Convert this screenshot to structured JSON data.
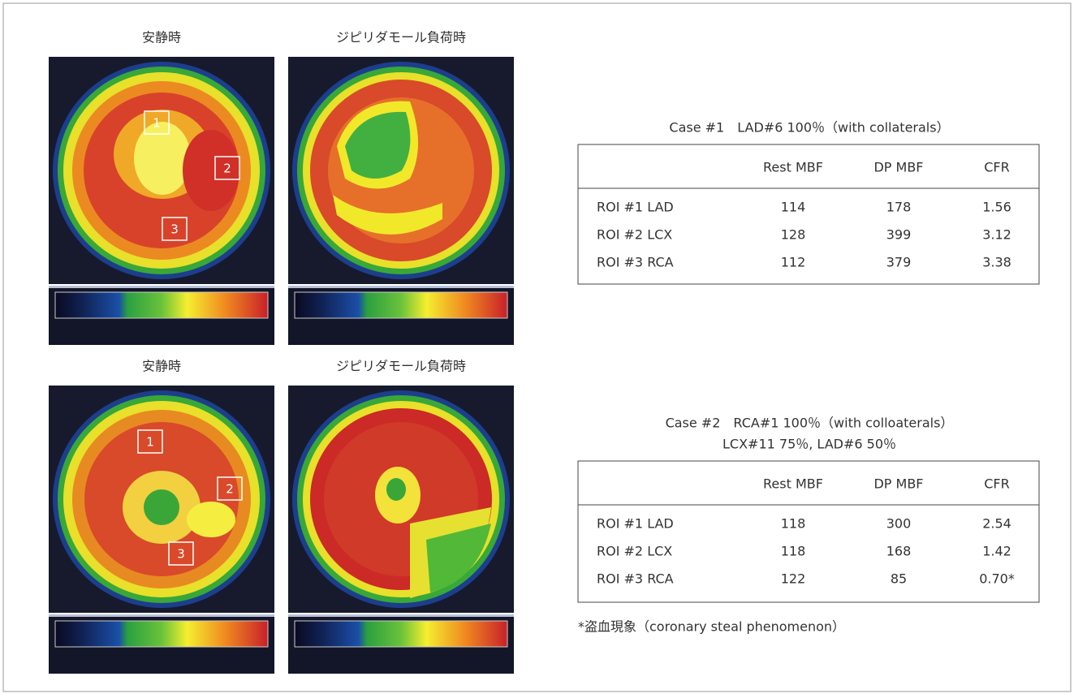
{
  "cases": [
    {
      "image_labels": [
        "安静時",
        "ジピリダモール負荷時"
      ],
      "roi_labels": [
        "1",
        "2",
        "3"
      ],
      "caption": [
        "Case #1　LAD#6 100％（with collaterals）"
      ],
      "table": {
        "header": [
          "Rest MBF",
          "DP MBF",
          "CFR"
        ],
        "rows": [
          [
            "ROI #1 LAD",
            114,
            178,
            1.56
          ],
          [
            "ROI #2 LCX",
            128,
            399,
            3.12
          ],
          [
            "ROI #3 RCA",
            112,
            379,
            3.38
          ]
        ]
      }
    },
    {
      "image_labels": [
        "安静時",
        "ジピリダモール負荷時"
      ],
      "roi_labels": [
        "1",
        "2",
        "3"
      ],
      "caption": [
        "Case #2　RCA#1 100％（with colloaterals）",
        "LCX#11 75％, LAD#6 50％"
      ],
      "table": {
        "header": [
          "Rest MBF",
          "DP MBF",
          "CFR"
        ],
        "rows": [
          [
            "ROI #1 LAD",
            118,
            300,
            2.54
          ],
          [
            "ROI #2 LCX",
            118,
            168,
            1.42
          ],
          [
            "ROI #3 RCA",
            122,
            85,
            "0.70*"
          ]
        ]
      }
    }
  ],
  "footnote": "*盗血現象（coronary steal phenomenon）"
}
